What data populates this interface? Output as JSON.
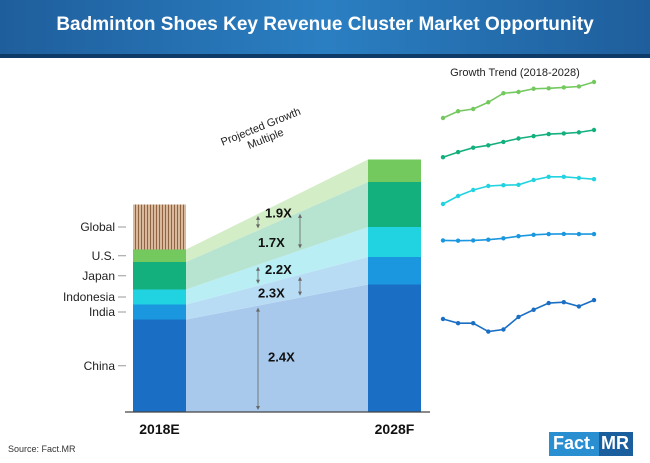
{
  "title": "Badminton Shoes Key Revenue Cluster Market Opportunity",
  "source": "Source: Fact.MR",
  "logo": {
    "part1": "Fact.",
    "part2": "MR"
  },
  "chart_data": {
    "type": "bar",
    "title": "Badminton Shoes Key Revenue Cluster Market Opportunity",
    "categories": [
      "2018E",
      "2028F"
    ],
    "series": [
      {
        "name": "China",
        "values": [
          37,
          51
        ],
        "color": "#1a6fc4",
        "band": "#a9c9ec"
      },
      {
        "name": "India",
        "values": [
          6,
          11
        ],
        "color": "#1b97df",
        "band": "#b9dcf5"
      },
      {
        "name": "Indonesia",
        "values": [
          6,
          12
        ],
        "color": "#21d3e0",
        "band": "#b9eef5"
      },
      {
        "name": "Japan",
        "values": [
          11,
          18
        ],
        "color": "#13b07e",
        "band": "#b7e3d1"
      },
      {
        "name": "U.S.",
        "values": [
          5,
          9
        ],
        "color": "#74c95e",
        "band": "#d3edc6"
      },
      {
        "name": "Global",
        "values": [
          18,
          0
        ],
        "color": "#b8896a",
        "band": null
      }
    ],
    "multiples": [
      {
        "segment": "U.S.",
        "label": "1.9X"
      },
      {
        "segment": "Japan",
        "label": "1.7X"
      },
      {
        "segment": "Indonesia",
        "label": "2.2X"
      },
      {
        "segment": "India",
        "label": "2.3X"
      },
      {
        "segment": "China",
        "label": "2.4X"
      }
    ],
    "annotation": [
      "Projected Growth",
      "Multiple"
    ],
    "ylim": [
      0,
      100
    ],
    "trend": {
      "title": "Growth Trend (2018-2028)",
      "x": [
        2018,
        2019,
        2020,
        2021,
        2022,
        2023,
        2024,
        2025,
        2026,
        2027,
        2028
      ],
      "series": [
        {
          "name": "U.S.",
          "color": "#74c95e",
          "values": [
            20,
            35,
            40,
            55,
            75,
            78,
            85,
            86,
            88,
            90,
            100
          ]
        },
        {
          "name": "Japan",
          "color": "#13b07e",
          "values": [
            20,
            35,
            48,
            55,
            65,
            75,
            82,
            88,
            90,
            93,
            100
          ]
        },
        {
          "name": "Indonesia",
          "color": "#21d3e0",
          "values": [
            20,
            40,
            55,
            65,
            67,
            68,
            80,
            88,
            88,
            85,
            82
          ]
        },
        {
          "name": "India",
          "color": "#1b97df",
          "values": [
            40,
            38,
            40,
            45,
            55,
            70,
            80,
            85,
            86,
            85,
            85
          ]
        },
        {
          "name": "China",
          "color": "#1a6fc4",
          "values": [
            50,
            40,
            40,
            20,
            25,
            55,
            72,
            88,
            90,
            80,
            95
          ]
        }
      ]
    }
  }
}
